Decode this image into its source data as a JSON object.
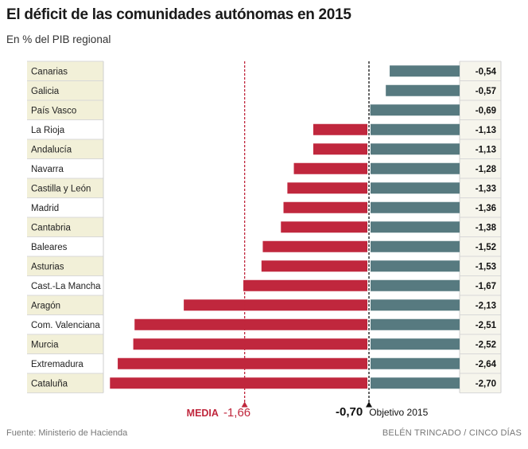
{
  "title": "El déficit de las comunidades autónomas en 2015",
  "subtitle": "En % del PIB regional",
  "chart_data": {
    "type": "bar",
    "orientation": "horizontal",
    "categories": [
      "Canarias",
      "Galicia",
      "País Vasco",
      "La Rioja",
      "Andalucía",
      "Navarra",
      "Castilla y León",
      "Madrid",
      "Cantabria",
      "Baleares",
      "Asturias",
      "Cast.-La Mancha",
      "Aragón",
      "Com. Valenciana",
      "Murcia",
      "Extremadura",
      "Cataluña"
    ],
    "values": [
      -0.54,
      -0.57,
      -0.69,
      -1.13,
      -1.13,
      -1.28,
      -1.33,
      -1.36,
      -1.38,
      -1.52,
      -1.53,
      -1.67,
      -2.13,
      -2.51,
      -2.52,
      -2.64,
      -2.7
    ],
    "value_labels": [
      "-0,54",
      "-0,57",
      "-0,69",
      "-1,13",
      "-1,13",
      "-1,28",
      "-1,33",
      "-1,36",
      "-1,38",
      "-1,52",
      "-1,53",
      "-1,67",
      "-2,13",
      "-2,51",
      "-2,52",
      "-2,64",
      "-2,70"
    ],
    "xlim": [
      -3.0,
      0
    ],
    "reference_lines": [
      {
        "name": "media",
        "label": "MEDIA",
        "value": -1.66,
        "value_label": "-1,66",
        "color": "#c0273d"
      },
      {
        "name": "objetivo",
        "label": "Objetivo 2015",
        "value": -0.7,
        "value_label": "-0,70",
        "color": "#111111"
      }
    ],
    "colors": {
      "above_target": "#577a80",
      "below_target": "#c0273d",
      "label_band": "#f2f0d8"
    }
  },
  "footer": {
    "source": "Fuente: Ministerio de Hacienda",
    "credit": "BELÉN TRINCADO / CINCO DÍAS"
  }
}
